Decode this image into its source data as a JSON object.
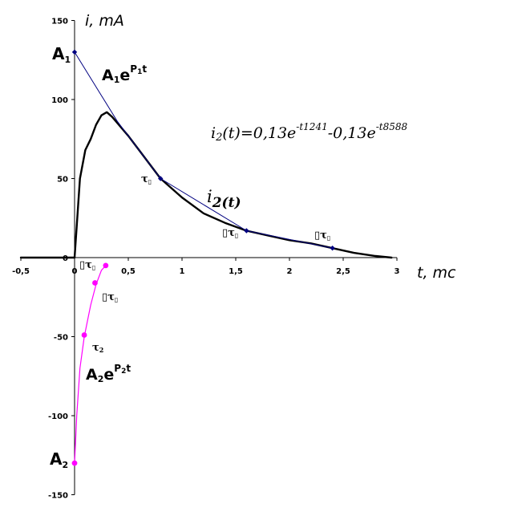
{
  "chart_data": {
    "type": "line",
    "title": "",
    "xlabel": "t, mc",
    "ylabel": "i, mA",
    "xlim": [
      -0.5,
      3
    ],
    "ylim": [
      -150,
      150
    ],
    "x_ticks": [
      -0.5,
      0,
      0.5,
      1,
      1.5,
      2,
      2.5,
      3
    ],
    "x_tick_labels": [
      "-0,5",
      "0",
      "0,5",
      "1",
      "1,5",
      "2",
      "2,5",
      "3"
    ],
    "y_ticks": [
      150,
      100,
      50,
      0,
      -50,
      -100,
      -150
    ],
    "y_tick_labels": [
      "150",
      "100",
      "50",
      "0",
      "-50",
      "-100",
      "-150"
    ],
    "series": [
      {
        "name": "i 2(t)",
        "color": "#000000",
        "x": [
          -0.5,
          0,
          0.02,
          0.05,
          0.1,
          0.15,
          0.2,
          0.25,
          0.3,
          0.35,
          0.4,
          0.5,
          0.6,
          0.8,
          1.0,
          1.2,
          1.4,
          1.6,
          1.8,
          2.0,
          2.2,
          2.4,
          2.6,
          2.8,
          2.95
        ],
        "y": [
          0,
          0,
          20,
          50,
          68,
          75,
          84,
          90,
          92,
          89,
          85,
          77,
          68,
          50,
          38,
          28,
          22,
          17,
          14,
          11,
          9,
          6,
          3,
          1,
          0
        ]
      },
      {
        "name": "A1e^P1t",
        "color": "#000080",
        "x": [
          0,
          0.4,
          0.8,
          1.6,
          2.4
        ],
        "y": [
          130,
          86,
          50,
          17,
          6
        ]
      },
      {
        "name": "A2e^P2t",
        "color": "#ff00ff",
        "x": [
          0,
          0.02,
          0.05,
          0.09,
          0.15,
          0.2,
          0.25,
          0.29
        ],
        "y": [
          -130,
          -100,
          -70,
          -50,
          -30,
          -17,
          -8,
          -5
        ]
      }
    ],
    "markers": {
      "a1_exp": {
        "color": "#000080",
        "x": [
          0,
          0.8,
          1.6,
          2.4
        ],
        "y": [
          130,
          50,
          17,
          6
        ]
      },
      "a2_exp": {
        "color": "#ff00ff",
        "x": [
          0,
          0.09,
          0.19,
          0.29
        ],
        "y": [
          -130,
          -49,
          -16,
          -5
        ]
      }
    },
    "annotations": {
      "formula_prefix": "i",
      "formula_sub": "2",
      "formula_mid": "(t)=0,13e",
      "formula_exp1": "-t1241",
      "formula_op": "-0,13e",
      "formula_exp2": "-t8588",
      "curve_label_main": "i",
      "curve_label_sub": "2(t)",
      "a1_label": "A",
      "a1_sub": "1",
      "a1_exp_label": "A",
      "a1_exp_sub": "1",
      "a1_exp_e": "e",
      "a1_exp_sup": "P",
      "a1_exp_sup_sub": "1",
      "a1_exp_sup_t": "t",
      "a2_label": "A",
      "a2_sub": "2",
      "a2_exp_label": "A",
      "a2_exp_sub": "2",
      "a2_exp_e": "e",
      "a2_exp_sup": "P",
      "a2_exp_sup_sub": "2",
      "a2_exp_sup_t": "t",
      "tau1_top": "τ",
      "tau1_top_sub": "▯",
      "tau_2_top": "▯τ",
      "tau_2_top_sub": "▯",
      "tau_3_top": "▯τ",
      "tau_3_top_sub": "▯",
      "tau_3_bottom": "▯τ",
      "tau_3_bottom_sub": "▯",
      "tau_2_bottom": "▯τ",
      "tau_2_bottom_sub": "▯",
      "tau2_bottom": "τ",
      "tau2_bottom_sub": "2"
    }
  }
}
